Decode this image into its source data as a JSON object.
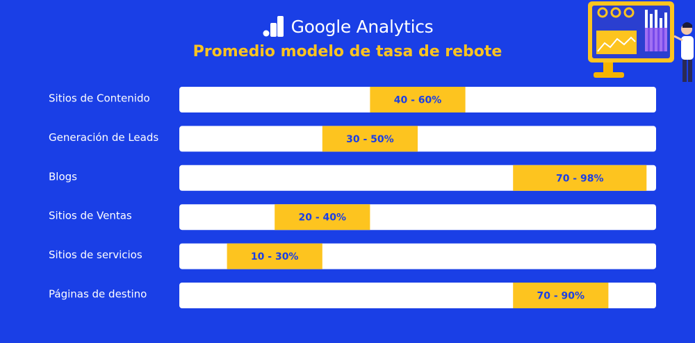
{
  "header": {
    "brand": "Google Analytics",
    "title": "Promedio modelo de tasa de rebote"
  },
  "colors": {
    "background": "#1a3fe6",
    "track": "#ffffff",
    "range": "#fdc41f",
    "title": "#fdc41f",
    "range_text": "#1a3fe6"
  },
  "icons": [
    "google-analytics-logo-icon",
    "dashboard-monitor-illustration-icon"
  ],
  "chart_data": {
    "type": "bar",
    "subtype": "floating-range",
    "title": "Promedio modelo de tasa de rebote",
    "xlabel": "",
    "ylabel": "",
    "xlim": [
      0,
      100
    ],
    "grid": false,
    "categories": [
      "Sitios de Contenido",
      "Generación de Leads",
      "Blogs",
      "Sitios de Ventas",
      "Sitios de servicios",
      "Páginas de destino"
    ],
    "ranges": [
      {
        "low": 40,
        "high": 60,
        "label": "40 - 60%"
      },
      {
        "low": 30,
        "high": 50,
        "label": "30 - 50%"
      },
      {
        "low": 70,
        "high": 98,
        "label": "70 - 98%"
      },
      {
        "low": 20,
        "high": 40,
        "label": "20 - 40%"
      },
      {
        "low": 10,
        "high": 30,
        "label": "10 - 30%"
      },
      {
        "low": 70,
        "high": 90,
        "label": "70 - 90%"
      }
    ]
  }
}
